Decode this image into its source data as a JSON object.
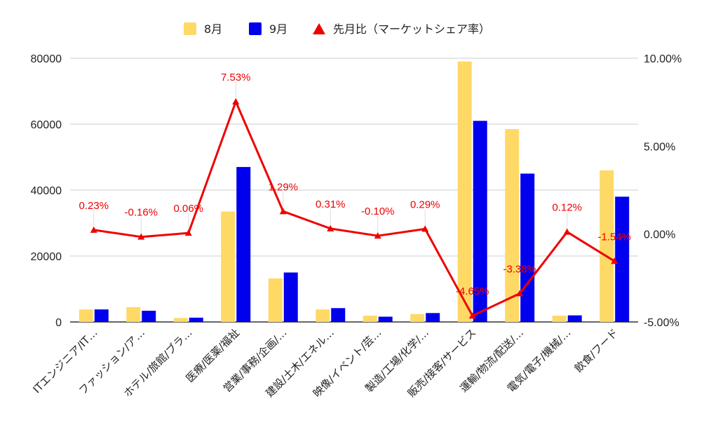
{
  "chart_data": {
    "type": "bar",
    "categories": [
      "ITエンジニア/IT…",
      "ファッション/ア…",
      "ホテル/旅館/ブラ…",
      "医療/医薬/福祉",
      "営業/事務/企画/…",
      "建設/土木/エネル…",
      "映像/イベント/芸…",
      "製造/工場/化学/…",
      "販売/接客/サービス",
      "運輸/物流/配送/…",
      "電気/電子/機械/…",
      "飲食/フード"
    ],
    "series": [
      {
        "name": "8月",
        "type": "bar",
        "axis": "left",
        "color": "#ffd966",
        "values": [
          3800,
          4500,
          1200,
          33500,
          13200,
          3800,
          1900,
          2400,
          79000,
          58500,
          1900,
          46000
        ]
      },
      {
        "name": "9月",
        "type": "bar",
        "axis": "left",
        "color": "#0000ee",
        "values": [
          3800,
          3400,
          1300,
          47000,
          15000,
          4200,
          1600,
          2700,
          61000,
          45000,
          2000,
          38000
        ]
      },
      {
        "name": "先月比（マーケットシェア率）",
        "type": "line",
        "axis": "right",
        "color": "#ee0000",
        "values": [
          0.23,
          -0.16,
          0.06,
          7.53,
          1.29,
          0.31,
          -0.1,
          0.29,
          -4.65,
          -3.38,
          0.12,
          -1.54
        ],
        "labels": [
          "0.23%",
          "-0.16%",
          "0.06%",
          "7.53%",
          "1.29%",
          "0.31%",
          "-0.10%",
          "0.29%",
          "-4.65%",
          "-3.38%",
          "0.12%",
          "-1.54%"
        ]
      }
    ],
    "y_left": {
      "ticks": [
        "0",
        "20000",
        "40000",
        "60000",
        "80000"
      ],
      "range": [
        0,
        80000
      ]
    },
    "y_right": {
      "ticks": [
        "-5.00%",
        "0.00%",
        "5.00%",
        "10.00%"
      ],
      "range": [
        -5,
        10
      ]
    },
    "legend_position": "top",
    "grid": true
  }
}
